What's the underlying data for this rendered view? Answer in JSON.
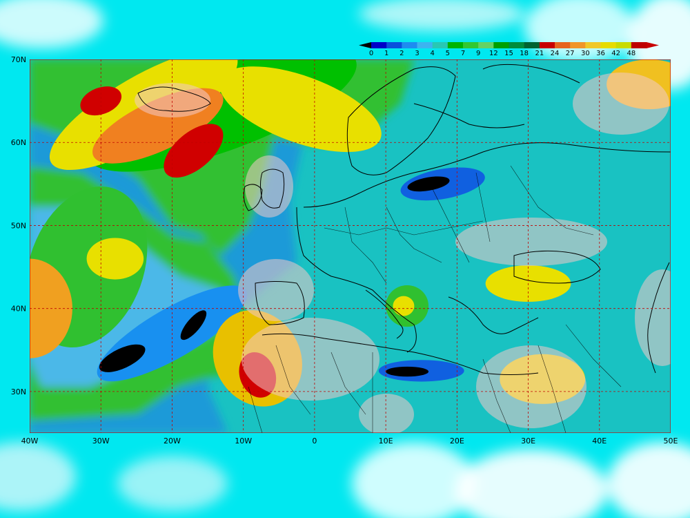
{
  "map": {
    "lon_range": [
      -40,
      50
    ],
    "lat_range": [
      25,
      70
    ],
    "lon_ticks": [
      {
        "value": -40,
        "label": "40W"
      },
      {
        "value": -30,
        "label": "30W"
      },
      {
        "value": -20,
        "label": "20W"
      },
      {
        "value": -10,
        "label": "10W"
      },
      {
        "value": 0,
        "label": "0"
      },
      {
        "value": 10,
        "label": "10E"
      },
      {
        "value": 20,
        "label": "20E"
      },
      {
        "value": 30,
        "label": "30E"
      },
      {
        "value": 40,
        "label": "40E"
      },
      {
        "value": 50,
        "label": "50E"
      }
    ],
    "lat_ticks": [
      {
        "value": 70,
        "label": "70N"
      },
      {
        "value": 60,
        "label": "60N"
      },
      {
        "value": 50,
        "label": "50N"
      },
      {
        "value": 40,
        "label": "40N"
      },
      {
        "value": 30,
        "label": "30N"
      }
    ],
    "grid": "dashed",
    "grid_color": "#c00000",
    "background_color": "#00e8f0",
    "land_color": "#f2c8c8",
    "sea_color": "#19c2c2"
  },
  "colorbar": {
    "placement": "top-right",
    "labels": [
      "0",
      "1",
      "2",
      "3",
      "4",
      "5",
      "7",
      "9",
      "12",
      "15",
      "18",
      "21",
      "24",
      "27",
      "30",
      "36",
      "42",
      "48"
    ],
    "colors": [
      "#0000c8",
      "#0a50dc",
      "#1e8cf0",
      "#3cb4f0",
      "#28c8b4",
      "#00b400",
      "#32c832",
      "#64d264",
      "#00a000",
      "#008c3c",
      "#006432",
      "#c80000",
      "#e6641e",
      "#f09628",
      "#f0c828",
      "#e6dc00",
      "#c8dc00",
      "#be0000"
    ],
    "left_end_color": "#000000",
    "right_end_color": "#c80000"
  },
  "field_blobs": [
    {
      "lon": -13,
      "lat": 64,
      "rx": 20,
      "ry": 5,
      "rot": -20,
      "color": "#00c000"
    },
    {
      "lon": -24,
      "lat": 64,
      "rx": 15,
      "ry": 4,
      "rot": -30,
      "color": "#e8e000"
    },
    {
      "lon": -22,
      "lat": 62,
      "rx": 10,
      "ry": 3,
      "rot": -25,
      "color": "#f08020"
    },
    {
      "lon": -30,
      "lat": 65,
      "rx": 3,
      "ry": 1.6,
      "rot": -20,
      "color": "#d00000"
    },
    {
      "lon": -17,
      "lat": 59,
      "rx": 5,
      "ry": 2.2,
      "rot": -40,
      "color": "#d00000"
    },
    {
      "lon": -2,
      "lat": 64,
      "rx": 12,
      "ry": 4,
      "rot": 20,
      "color": "#e8e000"
    },
    {
      "lon": -32,
      "lat": 45,
      "rx": 8,
      "ry": 10,
      "rot": 20,
      "color": "#30c030"
    },
    {
      "lon": -28,
      "lat": 46,
      "rx": 4,
      "ry": 2.5,
      "rot": 0,
      "color": "#e8e000"
    },
    {
      "lon": -40,
      "lat": 40,
      "rx": 6,
      "ry": 6,
      "rot": 0,
      "color": "#f0a020"
    },
    {
      "lon": -20,
      "lat": 37,
      "rx": 12,
      "ry": 3,
      "rot": -30,
      "color": "#1890f0"
    },
    {
      "lon": -27,
      "lat": 34,
      "rx": 3.5,
      "ry": 1.2,
      "rot": -25,
      "color": "#000000"
    },
    {
      "lon": -17,
      "lat": 38,
      "rx": 2.6,
      "ry": 0.8,
      "rot": -50,
      "color": "#000000"
    },
    {
      "lon": -8,
      "lat": 34,
      "rx": 6,
      "ry": 6,
      "rot": -30,
      "color": "#e8c000"
    },
    {
      "lon": -8,
      "lat": 32,
      "rx": 2.5,
      "ry": 2.8,
      "rot": -20,
      "color": "#d00000"
    },
    {
      "lon": 13,
      "lat": 40.3,
      "rx": 3,
      "ry": 2.5,
      "rot": 0,
      "color": "#30c030"
    },
    {
      "lon": 12.5,
      "lat": 40.3,
      "rx": 1.5,
      "ry": 1.2,
      "rot": 0,
      "color": "#e8e000"
    },
    {
      "lon": 18,
      "lat": 55,
      "rx": 6,
      "ry": 1.8,
      "rot": -10,
      "color": "#1060e0"
    },
    {
      "lon": 16,
      "lat": 55,
      "rx": 3,
      "ry": 0.8,
      "rot": -10,
      "color": "#000000"
    },
    {
      "lon": 15,
      "lat": 32.5,
      "rx": 6,
      "ry": 1.3,
      "rot": 0,
      "color": "#1060e0"
    },
    {
      "lon": 13,
      "lat": 32.4,
      "rx": 3,
      "ry": 0.6,
      "rot": 0,
      "color": "#000000"
    },
    {
      "lon": 30,
      "lat": 43,
      "rx": 6,
      "ry": 2.2,
      "rot": 0,
      "color": "#e8e000"
    },
    {
      "lon": 32,
      "lat": 31.5,
      "rx": 6,
      "ry": 3,
      "rot": 0,
      "color": "#e8e000"
    },
    {
      "lon": 47,
      "lat": 67,
      "rx": 6,
      "ry": 3,
      "rot": 0,
      "color": "#f0c020"
    }
  ]
}
